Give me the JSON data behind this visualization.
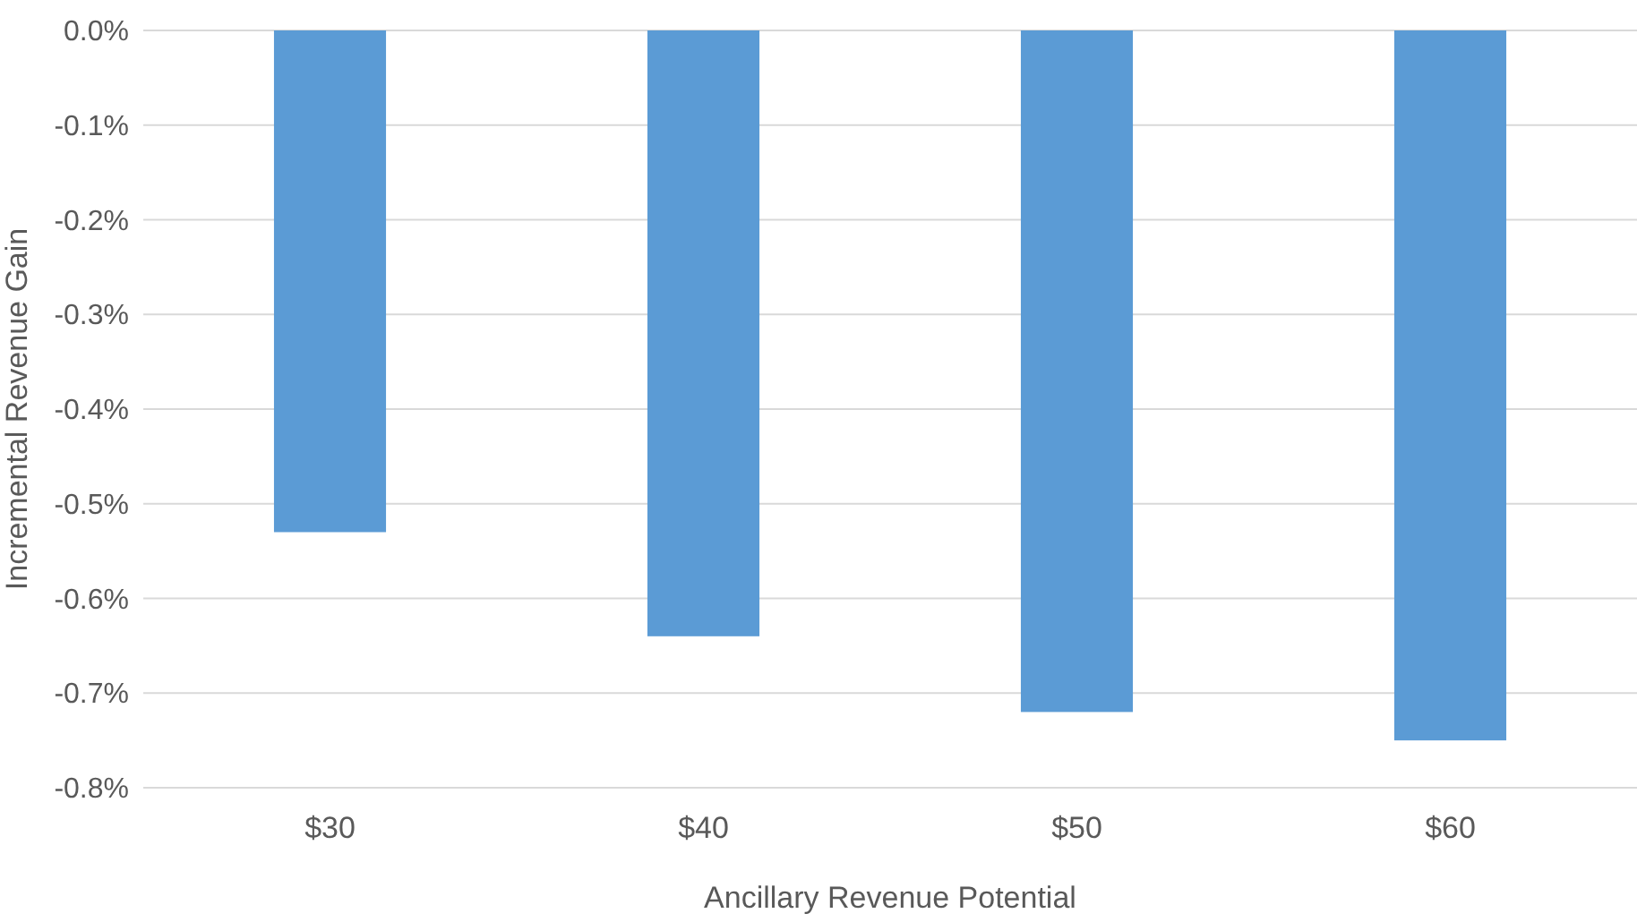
{
  "chart_data": {
    "type": "bar",
    "xlabel": "Ancillary Revenue Potential",
    "ylabel": "Incremental Revenue Gain",
    "categories": [
      "$30",
      "$40",
      "$50",
      "$60"
    ],
    "values": [
      -0.53,
      -0.64,
      -0.72,
      -0.75
    ],
    "color": "#5b9bd5",
    "ylim": [
      -0.8,
      0
    ],
    "yticks": [
      {
        "value": 0,
        "label": "0.0%"
      },
      {
        "value": -0.1,
        "label": "-0.1%"
      },
      {
        "value": -0.2,
        "label": "-0.2%"
      },
      {
        "value": -0.3,
        "label": "-0.3%"
      },
      {
        "value": -0.4,
        "label": "-0.4%"
      },
      {
        "value": -0.5,
        "label": "-0.5%"
      },
      {
        "value": -0.6,
        "label": "-0.6%"
      },
      {
        "value": -0.7,
        "label": "-0.7%"
      },
      {
        "value": -0.8,
        "label": "-0.8%"
      }
    ],
    "grid": "y"
  }
}
